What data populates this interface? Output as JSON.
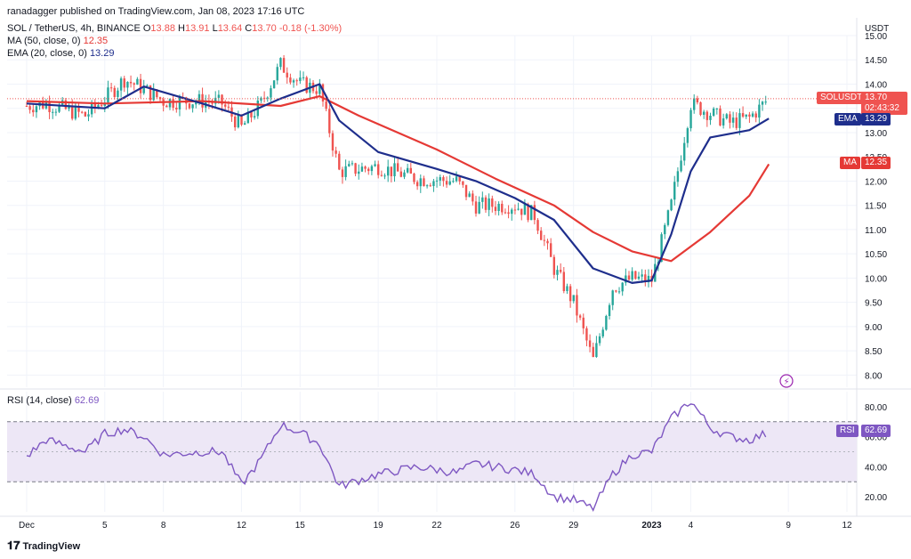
{
  "header": {
    "publisher": "ranadagger published on TradingView.com, Jan 08, 2023 17:16 UTC",
    "symbol": "SOL / TetherUS, 4h, BINANCE",
    "ohlc": {
      "o_label": "O",
      "o": "13.88",
      "h_label": "H",
      "h": "13.91",
      "l_label": "L",
      "l": "13.64",
      "c_label": "C",
      "c": "13.70",
      "chg": "-0.18 (-1.30%)"
    },
    "ma_label": "MA (50, close, 0)",
    "ma_value": "12.35",
    "ema_label": "EMA (20, close, 0)",
    "ema_value": "13.29",
    "rsi_label": "RSI (14, close)",
    "rsi_value": "62.69"
  },
  "tags": {
    "price_name": "SOLUSDT",
    "price_value": "13.70",
    "countdown": "02:43:32",
    "ema_name": "EMA",
    "ema_value": "13.29",
    "ma_name": "MA",
    "ma_value": "12.35",
    "rsi_name": "RSI",
    "rsi_value": "62.69",
    "currency": "USDT"
  },
  "watermark": "TradingView",
  "colors": {
    "up": "#26a69a",
    "down": "#ef5350",
    "ema": "#1e2e8c",
    "ma": "#e53935",
    "rsi": "#7e57c2",
    "rsi_band": "#ede7f6",
    "grid": "#f0f3fa"
  },
  "chart_data": [
    {
      "type": "candlestick",
      "title": "SOL / TetherUS, 4h, BINANCE",
      "ylabel": "USDT",
      "ylim": [
        7.75,
        15.0
      ],
      "yticks": [
        "15.00",
        "14.50",
        "14.00",
        "13.50",
        "13.00",
        "12.50",
        "12.00",
        "11.50",
        "11.00",
        "10.50",
        "10.00",
        "9.50",
        "9.00",
        "8.50",
        "8.00"
      ],
      "xticks": [
        "Dec",
        "5",
        "8",
        "12",
        "15",
        "19",
        "22",
        "26",
        "29",
        "2023",
        "4",
        "9",
        "12"
      ],
      "close_trajectory": [
        [
          "Dec 1",
          13.55
        ],
        [
          "Dec 2",
          13.6
        ],
        [
          "Dec 4",
          13.35
        ],
        [
          "Dec 5",
          13.7
        ],
        [
          "Dec 6",
          14.1
        ],
        [
          "Dec 7",
          13.9
        ],
        [
          "Dec 8",
          13.65
        ],
        [
          "Dec 10",
          13.65
        ],
        [
          "Dec 11",
          13.6
        ],
        [
          "Dec 12",
          13.1
        ],
        [
          "Dec 13",
          13.6
        ],
        [
          "Dec 14",
          14.4
        ],
        [
          "Dec 15",
          14.0
        ],
        [
          "Dec 16",
          13.9
        ],
        [
          "Dec 17",
          12.2
        ],
        [
          "Dec 19",
          12.3
        ],
        [
          "Dec 21",
          12.05
        ],
        [
          "Dec 23",
          12.0
        ],
        [
          "Dec 24",
          11.5
        ],
        [
          "Dec 26",
          11.5
        ],
        [
          "Dec 27",
          11.3
        ],
        [
          "Dec 28",
          10.2
        ],
        [
          "Dec 29",
          9.5
        ],
        [
          "Dec 30",
          8.3
        ],
        [
          "Dec 31",
          9.8
        ],
        [
          "Jan 1",
          10.0
        ],
        [
          "Jan 2",
          9.95
        ],
        [
          "Jan 3",
          11.5
        ],
        [
          "Jan 4",
          13.6
        ],
        [
          "Jan 5",
          13.4
        ],
        [
          "Jan 6",
          13.2
        ],
        [
          "Jan 7",
          13.3
        ],
        [
          "Jan 8",
          13.7
        ]
      ],
      "ema20": [
        [
          "Dec 1",
          13.6
        ],
        [
          "Dec 5",
          13.5
        ],
        [
          "Dec 7",
          13.95
        ],
        [
          "Dec 10",
          13.6
        ],
        [
          "Dec 12",
          13.35
        ],
        [
          "Dec 14",
          13.7
        ],
        [
          "Dec 16",
          14.0
        ],
        [
          "Dec 17",
          13.25
        ],
        [
          "Dec 19",
          12.6
        ],
        [
          "Dec 22",
          12.25
        ],
        [
          "Dec 24",
          12.0
        ],
        [
          "Dec 26",
          11.65
        ],
        [
          "Dec 28",
          11.2
        ],
        [
          "Dec 30",
          10.2
        ],
        [
          "Jan 1",
          9.9
        ],
        [
          "Jan 2",
          9.95
        ],
        [
          "Jan 3",
          10.9
        ],
        [
          "Jan 4",
          12.2
        ],
        [
          "Jan 5",
          12.9
        ],
        [
          "Jan 7",
          13.05
        ],
        [
          "Jan 8",
          13.29
        ]
      ],
      "ma50": [
        [
          "Dec 1",
          13.65
        ],
        [
          "Dec 5",
          13.6
        ],
        [
          "Dec 10",
          13.65
        ],
        [
          "Dec 14",
          13.55
        ],
        [
          "Dec 16",
          13.75
        ],
        [
          "Dec 18",
          13.35
        ],
        [
          "Dec 22",
          12.65
        ],
        [
          "Dec 25",
          12.05
        ],
        [
          "Dec 28",
          11.5
        ],
        [
          "Dec 30",
          10.95
        ],
        [
          "Jan 1",
          10.55
        ],
        [
          "Jan 3",
          10.35
        ],
        [
          "Jan 5",
          10.95
        ],
        [
          "Jan 7",
          11.7
        ],
        [
          "Jan 8",
          12.35
        ]
      ],
      "last_price": 13.7
    },
    {
      "type": "line",
      "title": "RSI (14, close)",
      "ylim": [
        10,
        90
      ],
      "yticks": [
        "80.00",
        "60.00",
        "40.00",
        "20.00"
      ],
      "bands": [
        30,
        70
      ],
      "midline": 50,
      "values": [
        [
          "Dec 1",
          47
        ],
        [
          "Dec 2",
          58
        ],
        [
          "Dec 4",
          50
        ],
        [
          "Dec 5",
          62
        ],
        [
          "Dec 6",
          65
        ],
        [
          "Dec 7",
          60
        ],
        [
          "Dec 8",
          48
        ],
        [
          "Dec 10",
          50
        ],
        [
          "Dec 11",
          50
        ],
        [
          "Dec 12",
          28
        ],
        [
          "Dec 13",
          45
        ],
        [
          "Dec 14",
          68
        ],
        [
          "Dec 15",
          63
        ],
        [
          "Dec 16",
          55
        ],
        [
          "Dec 17",
          27
        ],
        [
          "Dec 19",
          35
        ],
        [
          "Dec 21",
          40
        ],
        [
          "Dec 23",
          36
        ],
        [
          "Dec 24",
          42
        ],
        [
          "Dec 26",
          38
        ],
        [
          "Dec 27",
          35
        ],
        [
          "Dec 28",
          20
        ],
        [
          "Dec 29",
          18
        ],
        [
          "Dec 30",
          12
        ],
        [
          "Dec 31",
          35
        ],
        [
          "Jan 1",
          48
        ],
        [
          "Jan 2",
          50
        ],
        [
          "Jan 3",
          72
        ],
        [
          "Jan 4",
          84
        ],
        [
          "Jan 5",
          66
        ],
        [
          "Jan 6",
          60
        ],
        [
          "Jan 7",
          58
        ],
        [
          "Jan 8",
          62.69
        ]
      ]
    }
  ]
}
